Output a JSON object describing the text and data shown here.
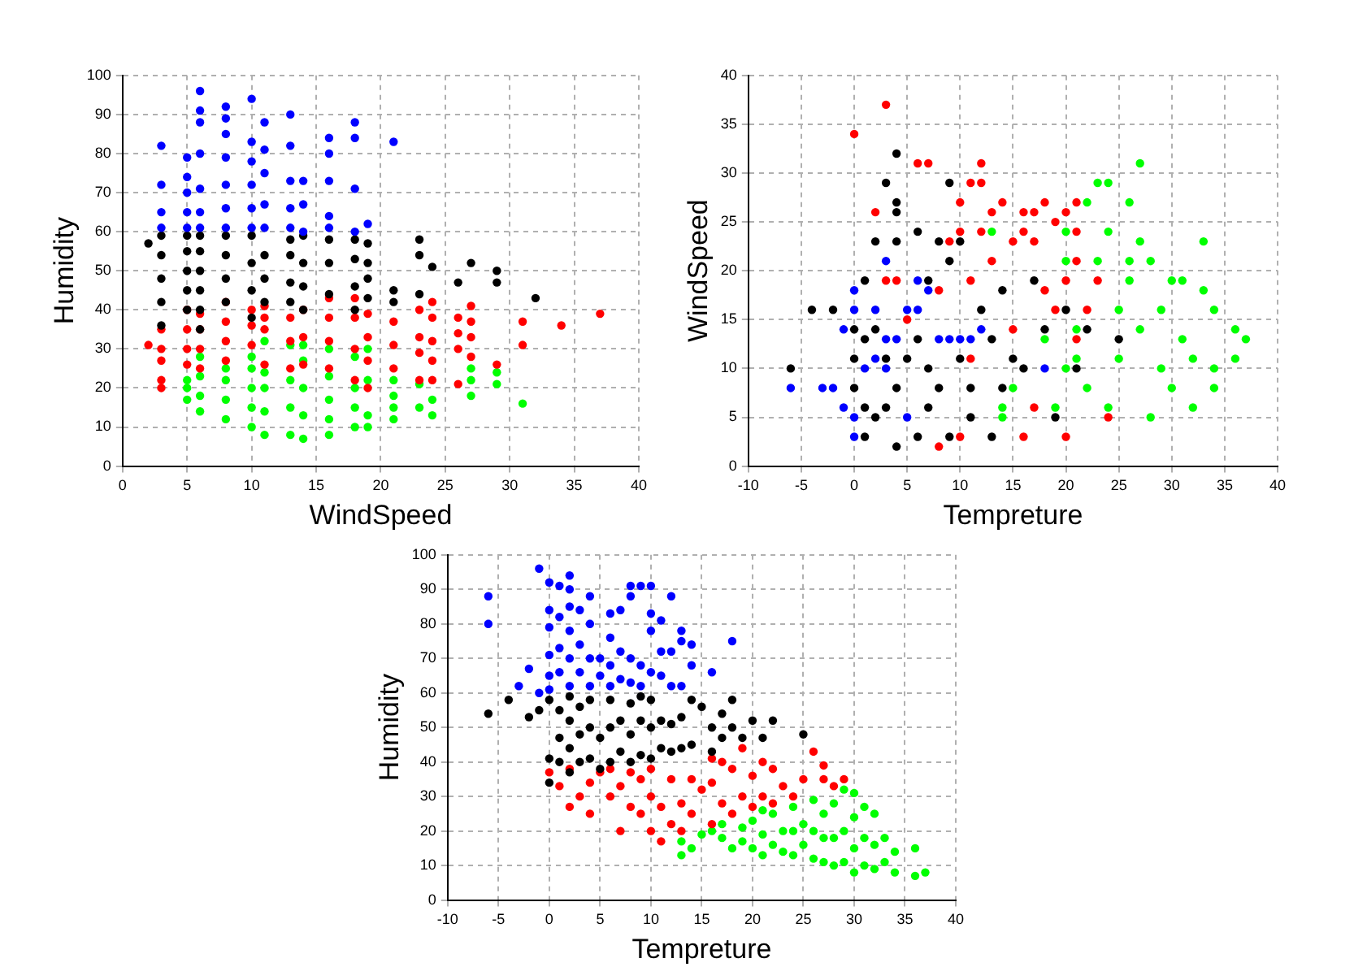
{
  "chart_data": [
    {
      "type": "scatter",
      "xlabel": "WindSpeed",
      "ylabel": "Humidity",
      "xlim": [
        0,
        40
      ],
      "ylim": [
        0,
        100
      ],
      "xticks": [
        0,
        5,
        10,
        15,
        20,
        25,
        30,
        35,
        40
      ],
      "yticks": [
        0,
        10,
        20,
        30,
        40,
        50,
        60,
        70,
        80,
        90,
        100
      ],
      "grid": true,
      "marker": "circle",
      "legend": false,
      "series": [
        {
          "color": "#0000ff",
          "x": [
            3,
            3,
            3,
            3,
            5,
            5,
            5,
            5,
            5,
            6,
            6,
            6,
            6,
            6,
            6,
            6,
            8,
            8,
            8,
            8,
            8,
            8,
            8,
            10,
            10,
            10,
            10,
            10,
            10,
            11,
            11,
            11,
            11,
            11,
            13,
            13,
            13,
            13,
            13,
            14,
            14,
            14,
            16,
            16,
            16,
            16,
            16,
            18,
            18,
            18,
            18,
            19,
            21
          ],
          "values": [
            61,
            65,
            72,
            82,
            61,
            65,
            70,
            74,
            79,
            61,
            65,
            71,
            80,
            88,
            91,
            96,
            61,
            66,
            72,
            79,
            85,
            89,
            92,
            61,
            66,
            72,
            78,
            83,
            94,
            61,
            67,
            75,
            81,
            88,
            61,
            66,
            73,
            82,
            90,
            60,
            67,
            73,
            61,
            64,
            73,
            80,
            84,
            60,
            71,
            84,
            88,
            62,
            83
          ]
        },
        {
          "color": "#000000",
          "x": [
            2,
            3,
            3,
            3,
            3,
            3,
            5,
            5,
            5,
            5,
            5,
            6,
            6,
            6,
            6,
            6,
            6,
            8,
            8,
            8,
            8,
            10,
            10,
            10,
            10,
            11,
            11,
            11,
            13,
            13,
            13,
            13,
            14,
            14,
            14,
            14,
            16,
            16,
            16,
            18,
            18,
            18,
            18,
            19,
            19,
            19,
            19,
            21,
            21,
            23,
            23,
            23,
            24,
            26,
            27,
            29,
            29,
            32
          ],
          "values": [
            57,
            36,
            42,
            48,
            54,
            59,
            40,
            45,
            50,
            55,
            59,
            35,
            40,
            45,
            50,
            55,
            59,
            42,
            48,
            54,
            59,
            38,
            45,
            52,
            59,
            42,
            48,
            54,
            42,
            47,
            54,
            58,
            40,
            46,
            52,
            59,
            44,
            52,
            58,
            40,
            46,
            53,
            58,
            43,
            48,
            52,
            57,
            42,
            45,
            44,
            54,
            58,
            51,
            47,
            52,
            47,
            50,
            43
          ]
        },
        {
          "color": "#ff0000",
          "x": [
            2,
            3,
            3,
            3,
            3,
            3,
            5,
            5,
            5,
            5,
            6,
            6,
            6,
            6,
            8,
            8,
            8,
            8,
            10,
            10,
            10,
            11,
            11,
            11,
            11,
            13,
            13,
            13,
            14,
            14,
            14,
            16,
            16,
            16,
            16,
            18,
            18,
            18,
            18,
            19,
            19,
            19,
            19,
            21,
            21,
            21,
            23,
            23,
            23,
            23,
            24,
            24,
            24,
            24,
            24,
            26,
            26,
            26,
            26,
            27,
            27,
            27,
            27,
            29,
            31,
            31,
            34,
            37
          ],
          "values": [
            31,
            20,
            22,
            27,
            30,
            35,
            26,
            30,
            35,
            40,
            25,
            30,
            35,
            39,
            27,
            32,
            37,
            42,
            31,
            36,
            40,
            26,
            35,
            38,
            41,
            25,
            32,
            38,
            26,
            33,
            40,
            25,
            32,
            38,
            43,
            22,
            30,
            38,
            43,
            20,
            27,
            33,
            39,
            25,
            31,
            37,
            22,
            29,
            33,
            40,
            22,
            27,
            32,
            38,
            42,
            21,
            30,
            34,
            38,
            28,
            33,
            37,
            41,
            26,
            31,
            37,
            36,
            39
          ]
        },
        {
          "color": "#00ff00",
          "x": [
            5,
            5,
            5,
            6,
            6,
            6,
            6,
            8,
            8,
            8,
            8,
            10,
            10,
            10,
            10,
            10,
            11,
            11,
            11,
            11,
            11,
            13,
            13,
            13,
            13,
            14,
            14,
            14,
            14,
            14,
            16,
            16,
            16,
            16,
            16,
            18,
            18,
            18,
            18,
            19,
            19,
            19,
            19,
            21,
            21,
            21,
            21,
            23,
            23,
            24,
            24,
            27,
            27,
            27,
            29,
            29,
            31
          ],
          "values": [
            17,
            20,
            22,
            14,
            18,
            23,
            28,
            12,
            17,
            22,
            25,
            10,
            15,
            20,
            25,
            28,
            8,
            14,
            20,
            24,
            32,
            8,
            15,
            22,
            31,
            7,
            13,
            20,
            27,
            31,
            8,
            12,
            17,
            23,
            30,
            10,
            15,
            20,
            28,
            10,
            13,
            22,
            30,
            12,
            15,
            18,
            22,
            15,
            21,
            13,
            17,
            18,
            22,
            25,
            21,
            24,
            16
          ]
        }
      ]
    },
    {
      "type": "scatter",
      "xlabel": "Tempreture",
      "ylabel": "WindSpeed",
      "xlim": [
        -10,
        40
      ],
      "ylim": [
        0,
        40
      ],
      "xticks": [
        -10,
        -5,
        0,
        5,
        10,
        15,
        20,
        25,
        30,
        35,
        40
      ],
      "yticks": [
        0,
        5,
        10,
        15,
        20,
        25,
        30,
        35,
        40
      ],
      "grid": true,
      "marker": "circle",
      "legend": false,
      "series": [
        {
          "color": "#0000ff",
          "x": [
            -6,
            -3,
            -2,
            -1,
            -1,
            0,
            0,
            0,
            0,
            1,
            2,
            2,
            3,
            3,
            3,
            4,
            5,
            5,
            6,
            6,
            7,
            8,
            9,
            10,
            11,
            12,
            18
          ],
          "values": [
            8,
            8,
            8,
            6,
            14,
            3,
            5,
            16,
            18,
            10,
            11,
            16,
            10,
            13,
            21,
            13,
            5,
            16,
            16,
            19,
            18,
            13,
            13,
            13,
            13,
            14,
            10
          ]
        },
        {
          "color": "#000000",
          "x": [
            -6,
            -4,
            -2,
            0,
            0,
            0,
            1,
            1,
            1,
            1,
            2,
            2,
            2,
            3,
            3,
            3,
            4,
            4,
            4,
            4,
            4,
            4,
            5,
            6,
            6,
            6,
            7,
            7,
            7,
            8,
            8,
            9,
            9,
            9,
            10,
            10,
            11,
            11,
            12,
            13,
            13,
            14,
            14,
            15,
            16,
            17,
            18,
            19,
            20,
            21,
            22,
            25
          ],
          "values": [
            10,
            16,
            16,
            8,
            11,
            14,
            3,
            6,
            13,
            19,
            5,
            14,
            23,
            6,
            11,
            29,
            2,
            8,
            26,
            27,
            32,
            23,
            11,
            3,
            24,
            13,
            6,
            10,
            19,
            8,
            23,
            3,
            21,
            29,
            11,
            23,
            5,
            8,
            16,
            3,
            13,
            8,
            18,
            11,
            10,
            19,
            14,
            5,
            16,
            10,
            14,
            13
          ]
        },
        {
          "color": "#ff0000",
          "x": [
            0,
            2,
            3,
            3,
            4,
            5,
            6,
            7,
            8,
            8,
            9,
            10,
            10,
            10,
            11,
            11,
            12,
            12,
            12,
            13,
            13,
            14,
            15,
            15,
            16,
            16,
            16,
            17,
            17,
            17,
            18,
            18,
            19,
            19,
            20,
            20,
            20,
            21,
            21,
            21,
            21,
            22,
            23,
            24,
            11
          ],
          "values": [
            34,
            26,
            19,
            37,
            19,
            15,
            31,
            31,
            2,
            18,
            23,
            3,
            27,
            24,
            29,
            19,
            24,
            29,
            31,
            21,
            26,
            27,
            23,
            14,
            3,
            26,
            24,
            23,
            26,
            6,
            27,
            18,
            25,
            16,
            3,
            19,
            26,
            27,
            21,
            24,
            13,
            16,
            19,
            5,
            11
          ]
        },
        {
          "color": "#00ff00",
          "x": [
            13,
            14,
            14,
            15,
            18,
            19,
            20,
            20,
            20,
            21,
            21,
            22,
            22,
            23,
            23,
            24,
            24,
            24,
            25,
            25,
            26,
            26,
            26,
            27,
            27,
            27,
            28,
            28,
            29,
            29,
            30,
            30,
            31,
            31,
            32,
            32,
            33,
            33,
            34,
            34,
            34,
            36,
            36,
            37
          ],
          "values": [
            24,
            6,
            5,
            8,
            13,
            6,
            10,
            24,
            21,
            11,
            14,
            27,
            8,
            29,
            21,
            24,
            29,
            6,
            16,
            11,
            27,
            21,
            19,
            31,
            23,
            14,
            5,
            21,
            10,
            16,
            19,
            8,
            13,
            19,
            11,
            6,
            23,
            18,
            16,
            10,
            8,
            11,
            14,
            13
          ]
        }
      ]
    },
    {
      "type": "scatter",
      "xlabel": "Tempreture",
      "ylabel": "Humidity",
      "xlim": [
        -10,
        40
      ],
      "ylim": [
        0,
        100
      ],
      "xticks": [
        -10,
        -5,
        0,
        5,
        10,
        15,
        20,
        25,
        30,
        35,
        40
      ],
      "yticks": [
        0,
        10,
        20,
        30,
        40,
        50,
        60,
        70,
        80,
        90,
        100
      ],
      "grid": true,
      "marker": "circle",
      "legend": false,
      "series": [
        {
          "color": "#0000ff",
          "x": [
            -6,
            -6,
            -3,
            -2,
            -1,
            -1,
            0,
            0,
            0,
            0,
            0,
            0,
            1,
            1,
            1,
            1,
            2,
            2,
            2,
            2,
            2,
            2,
            3,
            3,
            3,
            4,
            4,
            4,
            4,
            5,
            5,
            6,
            6,
            6,
            6,
            7,
            7,
            7,
            8,
            8,
            8,
            8,
            9,
            9,
            9,
            10,
            10,
            10,
            10,
            11,
            11,
            11,
            12,
            12,
            12,
            13,
            13,
            13,
            14,
            14,
            16,
            18
          ],
          "values": [
            80,
            88,
            62,
            67,
            60,
            96,
            61,
            65,
            71,
            79,
            84,
            92,
            66,
            73,
            82,
            91,
            62,
            70,
            78,
            85,
            90,
            94,
            66,
            74,
            84,
            62,
            70,
            80,
            88,
            65,
            70,
            62,
            68,
            76,
            83,
            64,
            72,
            84,
            63,
            70,
            88,
            91,
            62,
            68,
            91,
            66,
            78,
            83,
            91,
            65,
            72,
            81,
            62,
            72,
            88,
            62,
            75,
            78,
            68,
            74,
            66,
            75
          ]
        },
        {
          "color": "#000000",
          "x": [
            -6,
            -4,
            -2,
            -1,
            0,
            0,
            0,
            1,
            1,
            1,
            2,
            2,
            2,
            2,
            3,
            3,
            3,
            4,
            4,
            4,
            5,
            5,
            6,
            6,
            6,
            7,
            7,
            8,
            8,
            8,
            9,
            9,
            9,
            10,
            10,
            10,
            11,
            11,
            12,
            12,
            13,
            13,
            14,
            14,
            15,
            16,
            16,
            17,
            17,
            18,
            18,
            19,
            20,
            21,
            22,
            25
          ],
          "values": [
            54,
            58,
            53,
            55,
            34,
            41,
            58,
            40,
            47,
            55,
            37,
            44,
            52,
            59,
            40,
            48,
            56,
            41,
            50,
            58,
            38,
            47,
            40,
            50,
            58,
            43,
            52,
            40,
            48,
            57,
            42,
            52,
            59,
            41,
            50,
            58,
            44,
            52,
            43,
            51,
            44,
            53,
            45,
            58,
            56,
            43,
            50,
            47,
            54,
            50,
            58,
            47,
            52,
            47,
            52,
            48
          ]
        },
        {
          "color": "#ff0000",
          "x": [
            0,
            1,
            2,
            2,
            3,
            4,
            4,
            5,
            6,
            6,
            7,
            7,
            8,
            8,
            9,
            9,
            10,
            10,
            10,
            11,
            11,
            12,
            12,
            13,
            13,
            14,
            14,
            15,
            16,
            16,
            16,
            17,
            17,
            18,
            18,
            19,
            19,
            20,
            20,
            21,
            21,
            22,
            22,
            23,
            24,
            25,
            26,
            27,
            27,
            28,
            29
          ],
          "values": [
            37,
            33,
            27,
            38,
            30,
            25,
            34,
            37,
            30,
            38,
            20,
            33,
            27,
            37,
            25,
            35,
            20,
            30,
            38,
            17,
            27,
            22,
            35,
            20,
            28,
            25,
            35,
            32,
            22,
            34,
            41,
            28,
            40,
            25,
            38,
            30,
            44,
            27,
            36,
            30,
            40,
            28,
            38,
            33,
            30,
            35,
            43,
            35,
            39,
            33,
            35
          ]
        },
        {
          "color": "#00ff00",
          "x": [
            13,
            13,
            14,
            15,
            16,
            17,
            17,
            18,
            19,
            19,
            20,
            20,
            21,
            21,
            21,
            22,
            22,
            23,
            23,
            24,
            24,
            24,
            25,
            25,
            26,
            26,
            26,
            27,
            27,
            27,
            28,
            28,
            28,
            29,
            29,
            29,
            30,
            30,
            30,
            30,
            31,
            31,
            31,
            32,
            32,
            32,
            33,
            33,
            34,
            34,
            36,
            36,
            37
          ],
          "values": [
            13,
            17,
            15,
            19,
            20,
            18,
            22,
            15,
            17,
            21,
            15,
            23,
            13,
            19,
            26,
            16,
            25,
            14,
            20,
            13,
            20,
            27,
            16,
            22,
            12,
            20,
            29,
            11,
            18,
            25,
            10,
            18,
            28,
            11,
            20,
            32,
            8,
            15,
            24,
            31,
            10,
            18,
            27,
            9,
            16,
            25,
            11,
            18,
            8,
            14,
            7,
            15,
            8
          ]
        }
      ]
    }
  ]
}
